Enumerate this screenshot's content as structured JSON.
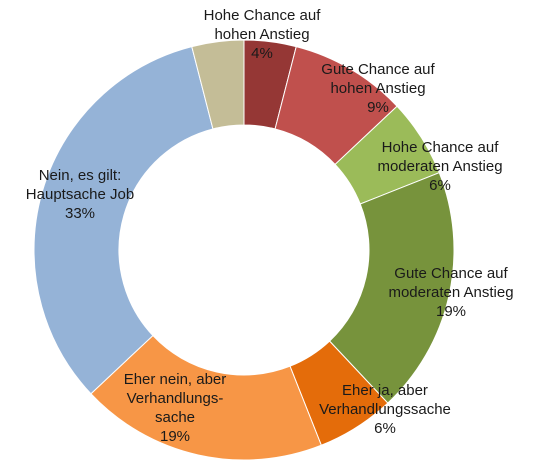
{
  "chart_data": {
    "type": "pie",
    "variant": "donut",
    "title": "",
    "legend": "none",
    "unit": "%",
    "series": [
      {
        "label_lines": [
          "Hohe Chance auf",
          "hohen Anstieg"
        ],
        "value": 4,
        "value_label": "4%",
        "color": "#953735"
      },
      {
        "label_lines": [
          "Gute Chance auf",
          "hohen Anstieg"
        ],
        "value": 9,
        "value_label": "9%",
        "color": "#c0504d"
      },
      {
        "label_lines": [
          "Hohe Chance auf",
          "moderaten Anstieg"
        ],
        "value": 6,
        "value_label": "6%",
        "color": "#9bbb59"
      },
      {
        "label_lines": [
          "Gute Chance auf",
          "moderaten Anstieg"
        ],
        "value": 19,
        "value_label": "19%",
        "color": "#77933c"
      },
      {
        "label_lines": [
          "Eher ja, aber",
          "Verhandlungssache"
        ],
        "value": 6,
        "value_label": "6%",
        "color": "#e46c0a"
      },
      {
        "label_lines": [
          "Eher nein, aber",
          "Verhandlungs-",
          "sache"
        ],
        "value": 19,
        "value_label": "19%",
        "color": "#f79646"
      },
      {
        "label_lines": [
          "Nein, es gilt:",
          "Hauptsache Job"
        ],
        "value": 33,
        "value_label": "33%",
        "color": "#95b3d7"
      },
      {
        "label_lines": [],
        "value": 4,
        "value_label": "",
        "color": "#c4bd97"
      }
    ]
  }
}
